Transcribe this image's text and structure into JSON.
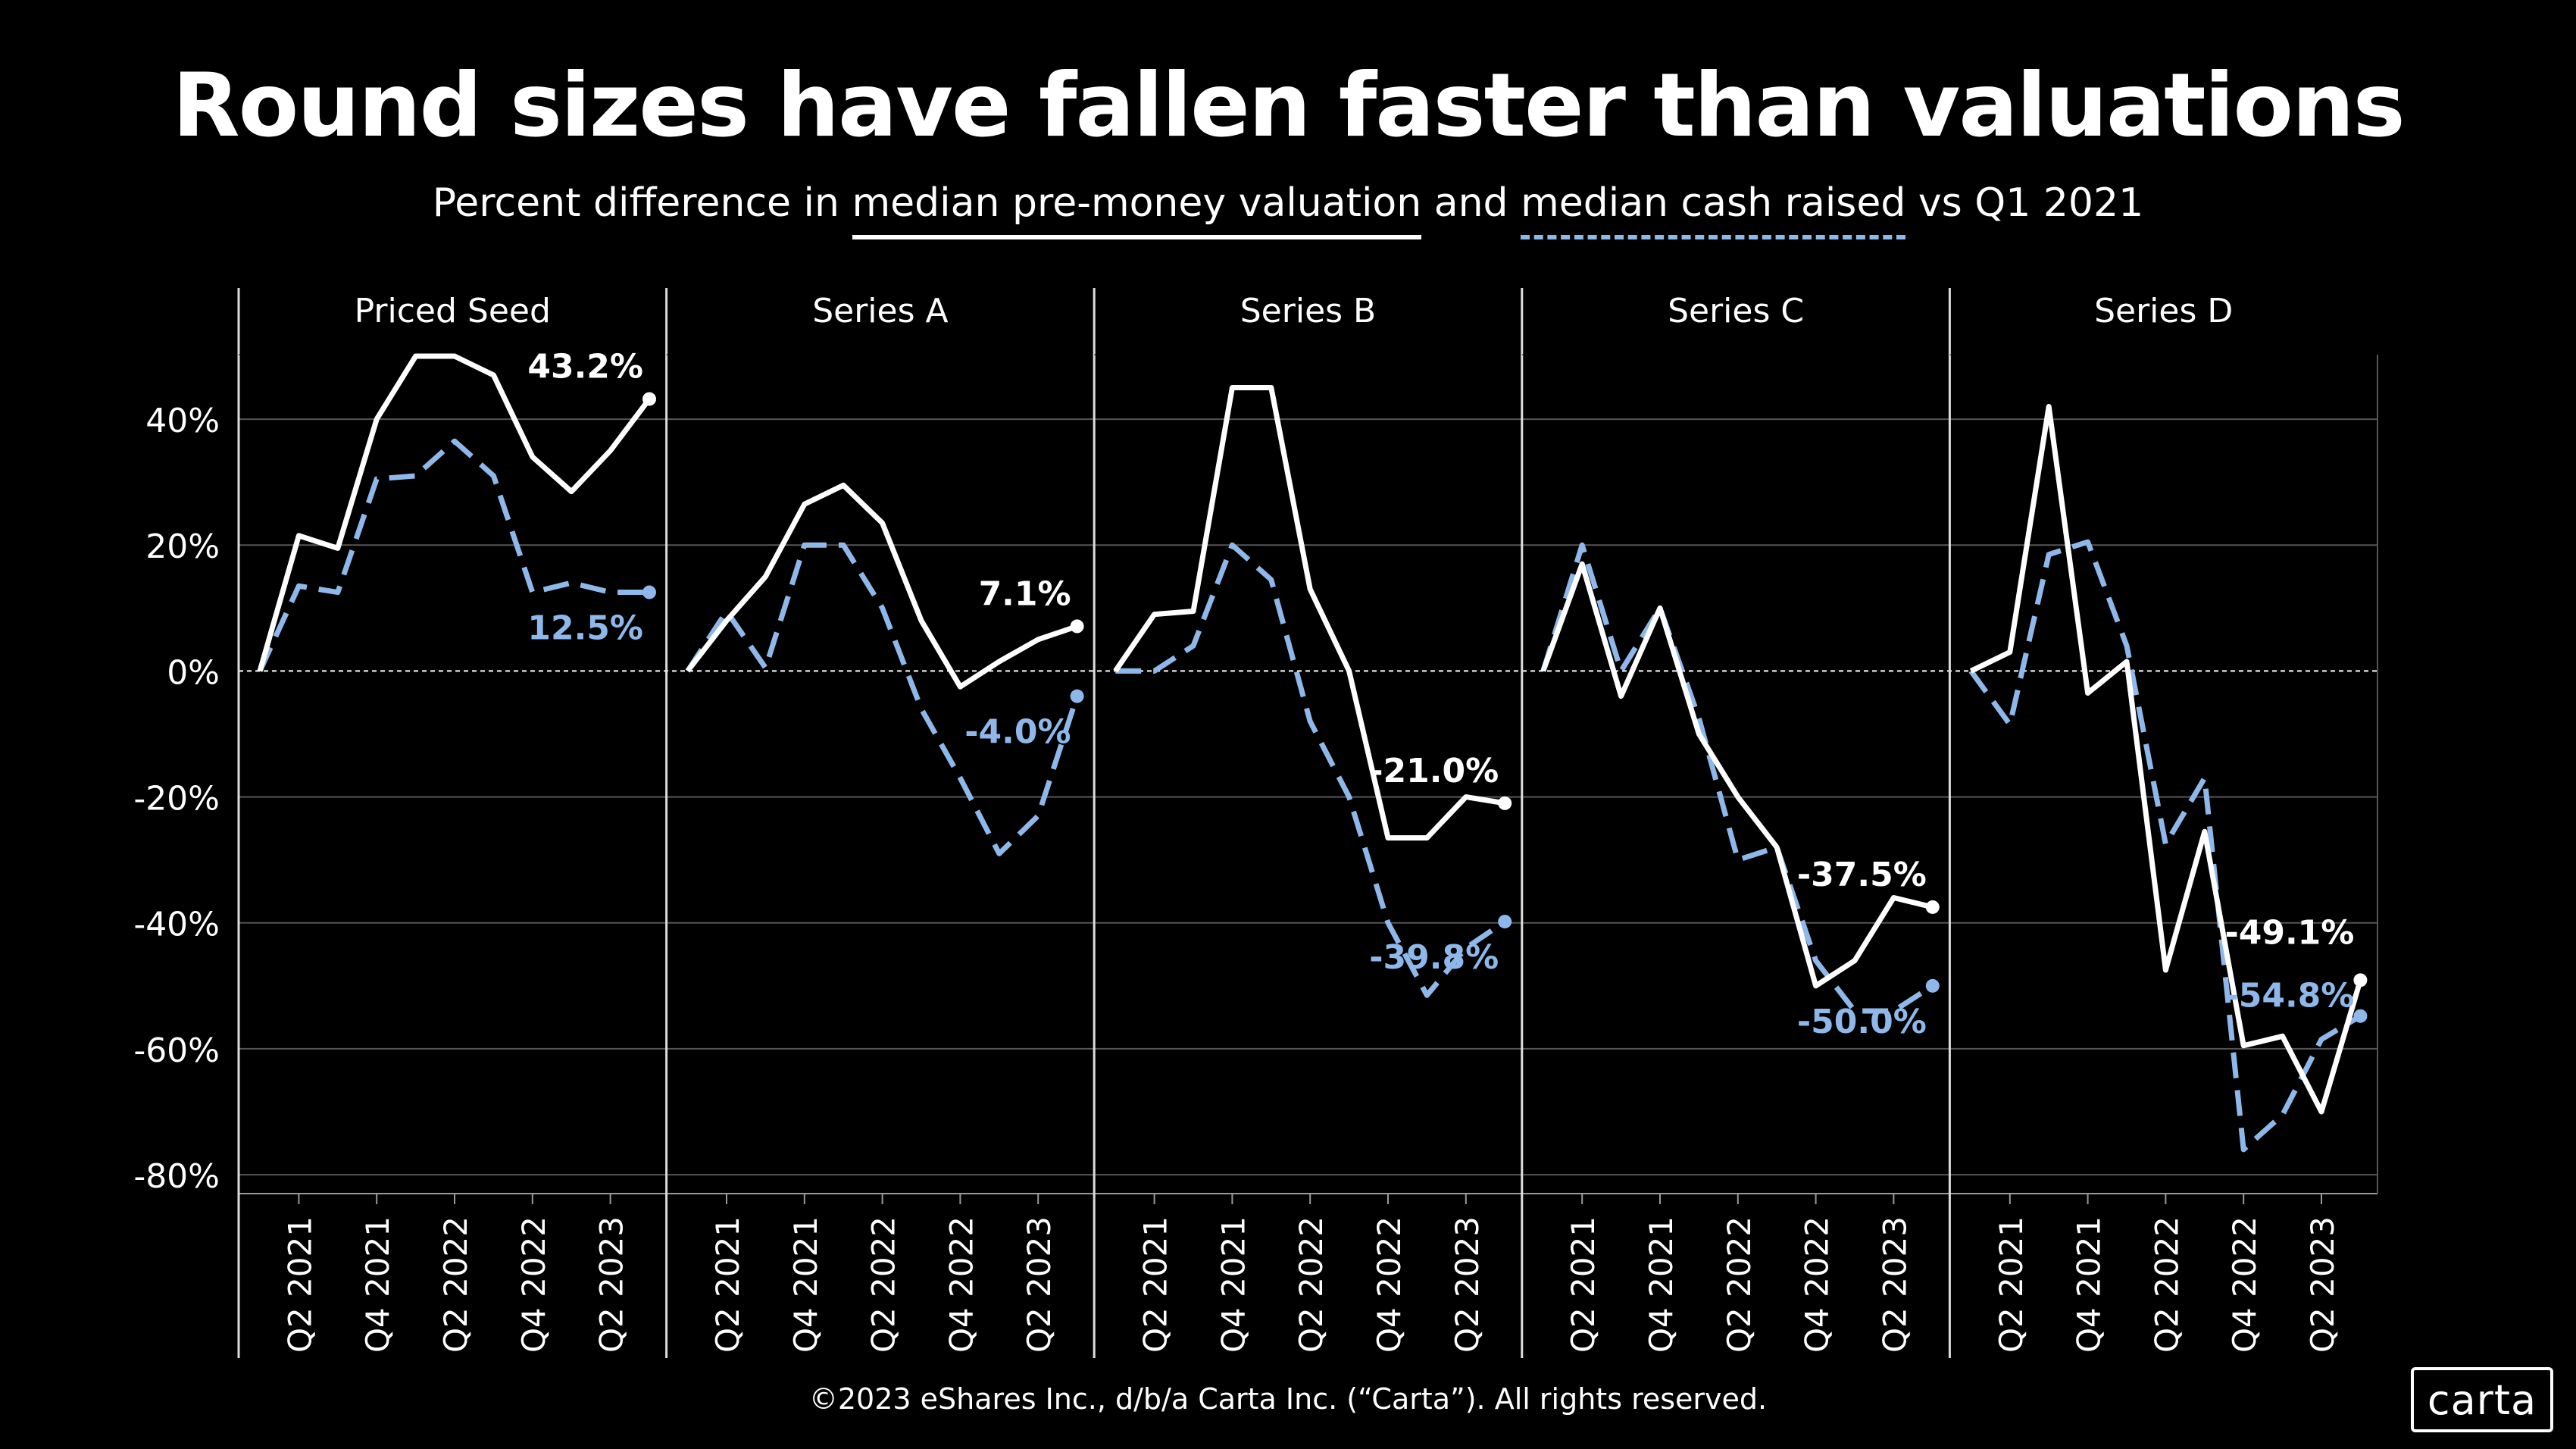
{
  "title": "Round sizes have fallen faster than valuations",
  "subtitle": {
    "prefix": "Percent difference in ",
    "valuation": "median pre-money valuation",
    "and": " and ",
    "cash": "median cash raised",
    "suffix": " vs Q1 2021"
  },
  "footer": "©2023 eShares Inc., d/b/a Carta Inc. (“Carta”). All rights reserved.",
  "logo": "carta",
  "colors": {
    "valuation": "#ffffff",
    "cash": "#8fb8ea",
    "background": "#000000",
    "grid": "#555555"
  },
  "chart_data": {
    "type": "line",
    "ylim": [
      -80,
      50
    ],
    "yticks": [
      40,
      20,
      0,
      -20,
      -40,
      -60,
      -80
    ],
    "ytick_labels": [
      "40%",
      "20%",
      "0%",
      "-20%",
      "-40%",
      "-60%",
      "-80%"
    ],
    "x": [
      "Q1 2021",
      "Q2 2021",
      "Q3 2021",
      "Q4 2021",
      "Q1 2022",
      "Q2 2022",
      "Q3 2022",
      "Q4 2022",
      "Q1 2023",
      "Q2 2023",
      "Q3 2023"
    ],
    "xtick_labels": [
      "Q2 2021",
      "Q4 2021",
      "Q2 2022",
      "Q4 2022",
      "Q2 2023"
    ],
    "grid": true,
    "panels": [
      {
        "name": "Priced Seed",
        "valuation": [
          0,
          21.5,
          19.5,
          40,
          50,
          50,
          47,
          34,
          28.5,
          35,
          43.2
        ],
        "cash": [
          0,
          13.5,
          12.5,
          30.5,
          31,
          36.5,
          31,
          12.5,
          14,
          12.5,
          12.5
        ],
        "label_valuation": "43.2%",
        "label_cash": "12.5%"
      },
      {
        "name": "Series A",
        "valuation": [
          0,
          8,
          15,
          26.5,
          29.5,
          23.5,
          8,
          -2.5,
          1.5,
          5,
          7.1
        ],
        "cash": [
          0,
          9.5,
          0.5,
          20,
          20,
          10,
          -6,
          -17,
          -29,
          -23,
          -4.0
        ],
        "label_valuation": "7.1%",
        "label_cash": "-4.0%"
      },
      {
        "name": "Series B",
        "valuation": [
          0,
          9,
          9.5,
          45,
          45,
          13,
          0,
          -26.5,
          -26.5,
          -20,
          -21.0
        ],
        "cash": [
          0,
          0,
          4,
          20,
          14.5,
          -8,
          -20,
          -40,
          -51.5,
          -44,
          -39.8
        ],
        "label_valuation": "-21.0%",
        "label_cash": "-39.8%"
      },
      {
        "name": "Series C",
        "valuation": [
          0,
          17,
          -4,
          10,
          -10,
          -20,
          -28,
          -50,
          -46,
          -36,
          -37.5
        ],
        "cash": [
          0,
          20,
          0,
          10,
          -7.5,
          -30,
          -28,
          -46,
          -54,
          -54,
          -50.0
        ],
        "label_valuation": "-37.5%",
        "label_cash": "-50.0%"
      },
      {
        "name": "Series D",
        "valuation": [
          0,
          3,
          42,
          -3.5,
          1.5,
          -47.5,
          -25.5,
          -59.5,
          -58,
          -70,
          -49.1
        ],
        "cash": [
          0,
          -8.5,
          18.5,
          20.5,
          4,
          -27.5,
          -17,
          -76,
          -70.5,
          -58.5,
          -54.8
        ],
        "label_valuation": "-49.1%",
        "label_cash": "-54.8%"
      }
    ]
  }
}
